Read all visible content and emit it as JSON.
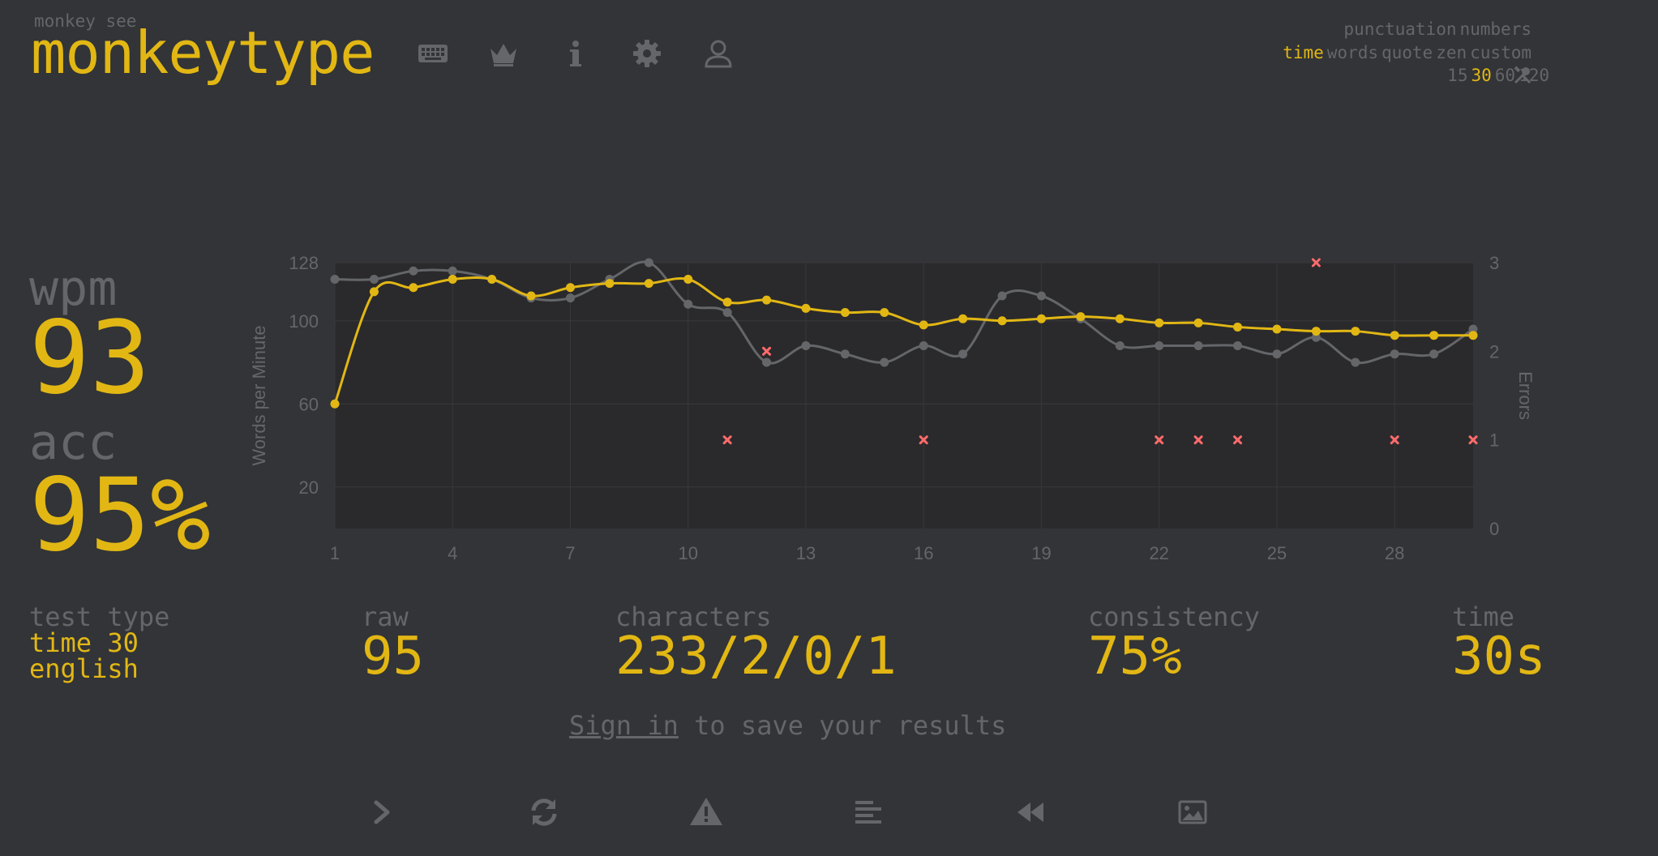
{
  "header": {
    "subtitle": "monkey see",
    "logo": "monkeytype",
    "nav_icons": [
      "keyboard-icon",
      "crown-icon",
      "info-icon",
      "gear-icon",
      "user-icon"
    ]
  },
  "config": {
    "row1": [
      "punctuation",
      "numbers"
    ],
    "row2": [
      "time",
      "words",
      "quote",
      "zen",
      "custom"
    ],
    "row2_active": "time",
    "row3": [
      "15",
      "30",
      "60",
      "120"
    ],
    "row3_active": "30",
    "row3_icon": "tools-icon"
  },
  "result": {
    "wpm_label": "wpm",
    "wpm_value": "93",
    "acc_label": "acc",
    "acc_value": "95%",
    "test_type_label": "test type",
    "test_type_line1": "time 30",
    "test_type_line2": "english",
    "raw_label": "raw",
    "raw_value": "95",
    "characters_label": "characters",
    "characters_value": "233/2/0/1",
    "consistency_label": "consistency",
    "consistency_value": "75%",
    "time_label": "time",
    "time_value": "30s"
  },
  "signin": {
    "link": "Sign in",
    "text": " to save your results"
  },
  "buttons": [
    "next-test-icon",
    "restart-icon",
    "report-icon",
    "words-history-icon",
    "replay-icon",
    "screenshot-icon"
  ],
  "colors": {
    "background": "#323437",
    "main": "#e2b714",
    "sub": "#646669",
    "error": "#ca4754",
    "plot_bg": "#2a2a2c"
  },
  "chart_data": {
    "type": "line",
    "ylabel": "Words per Minute",
    "y2label": "Errors",
    "x": [
      1,
      2,
      3,
      4,
      5,
      6,
      7,
      8,
      9,
      10,
      11,
      12,
      13,
      14,
      15,
      16,
      17,
      18,
      19,
      20,
      21,
      22,
      23,
      24,
      25,
      26,
      27,
      28,
      29,
      30
    ],
    "xticks": [
      1,
      4,
      7,
      10,
      13,
      16,
      19,
      22,
      25,
      28
    ],
    "yticks": [
      20,
      60,
      100,
      128
    ],
    "ylim": [
      0,
      128
    ],
    "y2ticks": [
      0,
      1,
      2,
      3
    ],
    "y2lim": [
      0,
      3
    ],
    "grid": true,
    "series": [
      {
        "type": "line",
        "color": "#e2b714",
        "values": [
          60,
          114,
          116,
          120,
          120,
          112,
          116,
          118,
          118,
          120,
          109,
          110,
          106,
          104,
          104,
          98,
          101,
          100,
          101,
          102,
          101,
          99,
          99,
          97,
          96,
          95,
          95,
          93,
          93,
          93
        ]
      },
      {
        "type": "line",
        "color": "#646669",
        "values": [
          120,
          120,
          124,
          124,
          120,
          111,
          111,
          120,
          128,
          108,
          104,
          80,
          88,
          84,
          80,
          88,
          84,
          112,
          112,
          101,
          88,
          88,
          88,
          88,
          84,
          92,
          80,
          84,
          84,
          96
        ]
      },
      {
        "type": "scatter",
        "color": "#ca4754",
        "marker": "x",
        "axis": "y2",
        "x": [
          11,
          12,
          16,
          22,
          23,
          24,
          26,
          28,
          30
        ],
        "values": [
          1,
          2,
          1,
          1,
          1,
          1,
          3,
          1,
          1
        ]
      }
    ]
  }
}
